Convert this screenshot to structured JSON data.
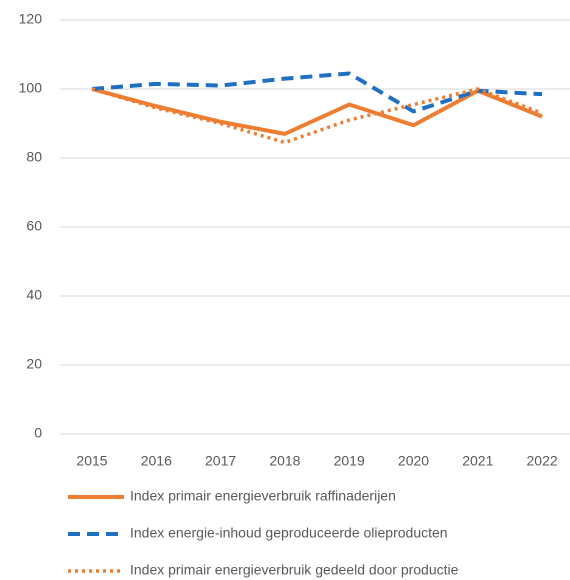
{
  "chart_data": {
    "type": "line",
    "categories": [
      "2015",
      "2016",
      "2017",
      "2018",
      "2019",
      "2020",
      "2021",
      "2022"
    ],
    "series": [
      {
        "name": "Index primair energieverbruik raffinaderijen",
        "color": "#ed7d31",
        "dash": "solid",
        "values": [
          100,
          95,
          90.5,
          87,
          95.5,
          89.5,
          99.5,
          92
        ]
      },
      {
        "name": "Index energie-inhoud geproduceerde olieproducten",
        "color": "#1f70c1",
        "dash": "dashed",
        "values": [
          100,
          101.5,
          101,
          103,
          104.5,
          93.5,
          99.5,
          98.5
        ]
      },
      {
        "name": "Index primair energieverbruik gedeeld door productie",
        "color": "#ed7d31",
        "dash": "dotted",
        "values": [
          100,
          94.5,
          90,
          84.5,
          91,
          95.5,
          100,
          93
        ]
      }
    ],
    "ylim": [
      0,
      120
    ],
    "yticks": [
      0,
      20,
      40,
      60,
      80,
      100,
      120
    ],
    "grid": true,
    "legend": "bottom"
  }
}
